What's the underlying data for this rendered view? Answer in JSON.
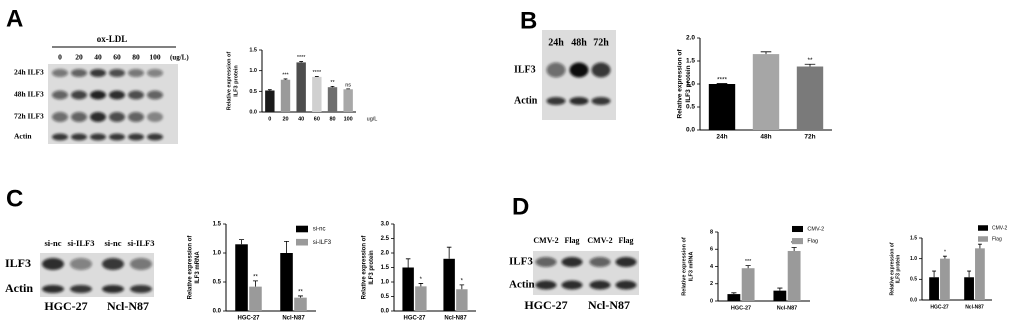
{
  "panels": [
    "A",
    "B",
    "C",
    "D"
  ],
  "blots": [
    {
      "header": "ox-LDL",
      "lanes": [
        "0",
        "20",
        "40",
        "60",
        "80",
        "100"
      ],
      "unit": "(ug/L)",
      "rows": [
        "24h ILF3",
        "48h ILF3",
        "72h ILF3",
        "Actin"
      ]
    },
    {
      "lanes": [
        "24h",
        "48h",
        "72h"
      ],
      "rows": [
        "ILF3",
        "Actin"
      ]
    },
    {
      "lanes": [
        "si-nc",
        "si-ILF3",
        "si-nc",
        "si-ILF3"
      ],
      "rows": [
        "ILF3",
        "Actin"
      ],
      "cells": [
        "HGC-27",
        "Ncl-N87"
      ]
    },
    {
      "lanes": [
        "CMV-2",
        "Flag",
        "CMV-2",
        "Flag"
      ],
      "rows": [
        "ILF3",
        "Actin"
      ],
      "cells": [
        "HGC-27",
        "Ncl-N87"
      ]
    }
  ],
  "chart_data": [
    {
      "type": "bar",
      "ylabel": [
        "Relative expression of",
        "ILF3 protein"
      ],
      "xlabel": "ug/L",
      "categories": [
        "0",
        "20",
        "40",
        "60",
        "80",
        "100"
      ],
      "values": [
        0.52,
        0.78,
        1.2,
        0.85,
        0.6,
        0.55
      ],
      "errors": [
        0.02,
        0.02,
        0.02,
        0.01,
        0.02,
        0.01
      ],
      "colors": [
        "#1a1a1a",
        "#9a9a9a",
        "#4d4d4d",
        "#d0d0d0",
        "#6e6e6e",
        "#a8a8a8"
      ],
      "annotations": [
        null,
        "***",
        "****",
        "****",
        "**",
        "ns"
      ],
      "ylim": [
        0,
        1.5
      ],
      "yticks": [
        {
          "value": 0,
          "label": "0.0"
        },
        {
          "value": 0.5,
          "label": "0.5"
        },
        {
          "value": 1,
          "label": "1.0"
        },
        {
          "value": 1.5,
          "label": "1.5"
        }
      ]
    },
    {
      "type": "bar",
      "ylabel": [
        "Relative expression of",
        "ILF3 protein"
      ],
      "categories": [
        "24h",
        "48h",
        "72h"
      ],
      "values": [
        1.0,
        1.65,
        1.38
      ],
      "errors": [
        0.01,
        0.05,
        0.05
      ],
      "colors": [
        "#000000",
        "#a6a6a6",
        "#7a7a7a"
      ],
      "annotations": [
        "****",
        null,
        "**"
      ],
      "ylim": [
        0,
        2.0
      ],
      "yticks": [
        {
          "value": 0,
          "label": "0.0"
        },
        {
          "value": 0.5,
          "label": "0.5"
        },
        {
          "value": 1,
          "label": "1.0"
        },
        {
          "value": 1.5,
          "label": "1.5"
        },
        {
          "value": 2,
          "label": "2.0"
        }
      ]
    },
    {
      "type": "bar",
      "ylabel": [
        "Relative expression of",
        "ILF3 mRNA"
      ],
      "legend": "upper right",
      "categories": [
        "HGC-27",
        "Ncl-N87"
      ],
      "series": [
        {
          "name": "si-nc",
          "color": "#000000",
          "values": [
            1.15,
            1.0
          ],
          "errors": [
            0.08,
            0.2
          ],
          "annotations": [
            null,
            null
          ]
        },
        {
          "name": "si-ILF3",
          "color": "#9a9a9a",
          "values": [
            0.42,
            0.23
          ],
          "errors": [
            0.1,
            0.03
          ],
          "annotations": [
            "**",
            "**"
          ]
        }
      ],
      "ylim": [
        0,
        1.5
      ],
      "yticks": [
        {
          "value": 0,
          "label": "0.0"
        },
        {
          "value": 0.5,
          "label": "0.5"
        },
        {
          "value": 1,
          "label": "1.0"
        },
        {
          "value": 1.5,
          "label": "1.5"
        }
      ]
    },
    {
      "type": "bar",
      "ylabel": [
        "Relative expression of",
        "ILF3 protein"
      ],
      "categories": [
        "HGC-27",
        "Ncl-N87"
      ],
      "series": [
        {
          "color": "#000000",
          "values": [
            1.5,
            1.8
          ],
          "errors": [
            0.3,
            0.4
          ],
          "annotations": [
            null,
            null
          ]
        },
        {
          "color": "#9a9a9a",
          "values": [
            0.85,
            0.75
          ],
          "errors": [
            0.1,
            0.15
          ],
          "annotations": [
            "*",
            "*"
          ]
        }
      ],
      "ylim": [
        0,
        3.0
      ],
      "yticks": [
        {
          "value": 0,
          "label": "0.0"
        },
        {
          "value": 0.5,
          "label": "0.5"
        },
        {
          "value": 1,
          "label": "1.0"
        },
        {
          "value": 1.5,
          "label": "1.5"
        },
        {
          "value": 2,
          "label": "2.0"
        },
        {
          "value": 2.5,
          "label": "2.5"
        },
        {
          "value": 3,
          "label": "3.0"
        }
      ]
    },
    {
      "type": "bar",
      "ylabel": [
        "Relative  expression of",
        "ILF3 mRNA"
      ],
      "legend": "upper right",
      "categories": [
        "HGC-27",
        "Ncl-N87"
      ],
      "series": [
        {
          "name": "CMV-2",
          "color": "#000000",
          "values": [
            0.8,
            1.2
          ],
          "errors": [
            0.15,
            0.3
          ],
          "annotations": [
            null,
            null
          ]
        },
        {
          "name": "Flag",
          "color": "#9a9a9a",
          "values": [
            3.8,
            5.8
          ],
          "errors": [
            0.3,
            0.4
          ],
          "annotations": [
            "***",
            "***"
          ]
        }
      ],
      "ylim": [
        0,
        8
      ],
      "yticks": [
        0,
        2,
        4,
        6,
        8
      ]
    },
    {
      "type": "bar",
      "ylabel": [
        "Relative expression of",
        "ILF3 protein"
      ],
      "legend": "upper right",
      "categories": [
        "HGC-27",
        "Ncl-N87"
      ],
      "series": [
        {
          "name": "CMV-2",
          "color": "#000000",
          "values": [
            0.55,
            0.55
          ],
          "errors": [
            0.15,
            0.15
          ],
          "annotations": [
            null,
            null
          ]
        },
        {
          "name": "Flag",
          "color": "#9a9a9a",
          "values": [
            1.0,
            1.25
          ],
          "errors": [
            0.06,
            0.1
          ],
          "annotations": [
            "*",
            "**"
          ]
        }
      ],
      "ylim": [
        0,
        1.5
      ],
      "yticks": [
        {
          "value": 0,
          "label": "0.0"
        },
        {
          "value": 0.5,
          "label": "0.5"
        },
        {
          "value": 1,
          "label": "1.0"
        },
        {
          "value": 1.5,
          "label": "1.5"
        }
      ]
    }
  ]
}
